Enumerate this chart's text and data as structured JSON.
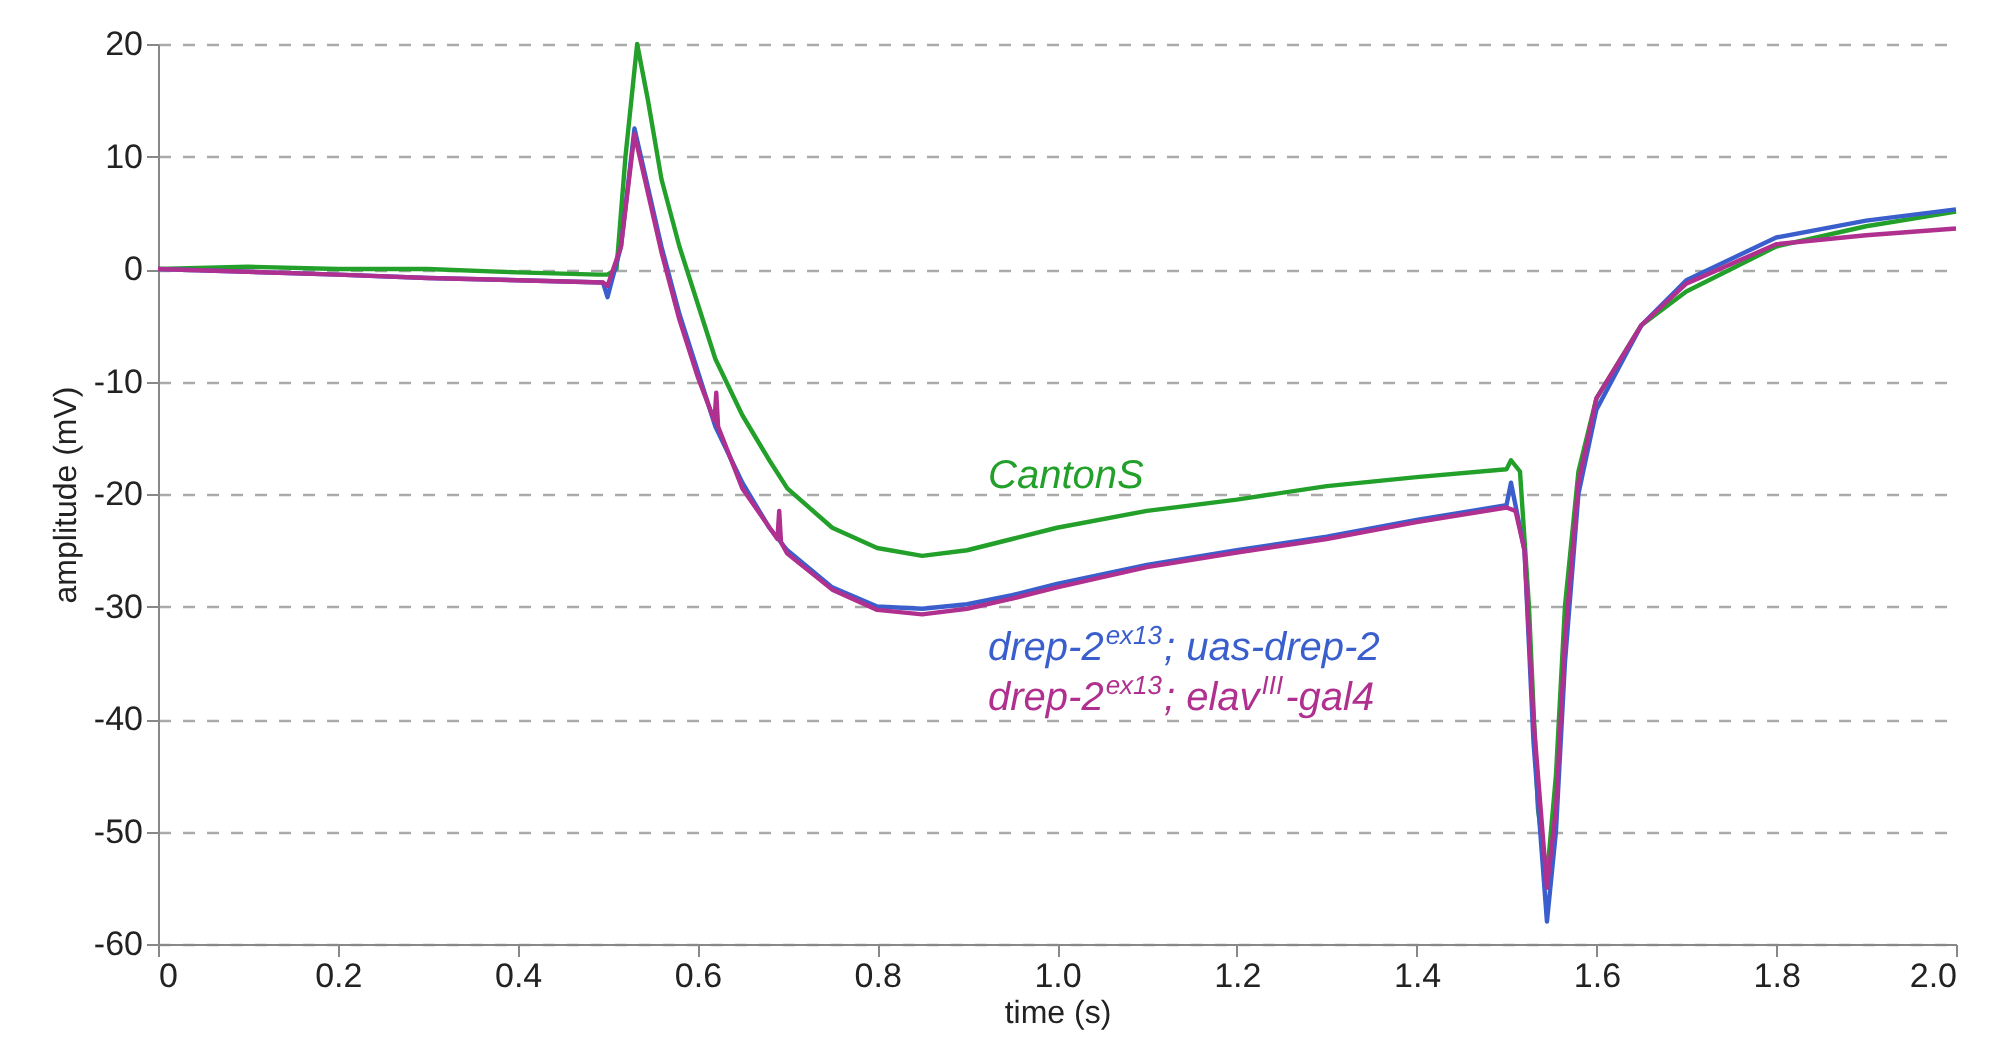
{
  "chart_data": {
    "type": "line",
    "xlabel": "time (s)",
    "ylabel": "amplitude (mV)",
    "xlim": [
      0,
      2.0
    ],
    "ylim": [
      -60,
      20
    ],
    "xticks": [
      0,
      0.2,
      0.4,
      0.6,
      0.8,
      {
        "value": 1,
        "label": "1.0"
      },
      1.2,
      1.4,
      1.6,
      1.8,
      {
        "value": 2,
        "label": "2.0"
      }
    ],
    "yticks": [
      -60,
      -50,
      -40,
      -30,
      -20,
      -10,
      0,
      10,
      20
    ],
    "grid": "y",
    "line_style": "solid",
    "series": [
      {
        "name": "CantonS",
        "color": "#22a02a",
        "x": [
          0,
          0.1,
          0.2,
          0.3,
          0.4,
          0.49,
          0.5,
          0.51,
          0.52,
          0.533,
          0.545,
          0.56,
          0.58,
          0.6,
          0.62,
          0.65,
          0.68,
          0.7,
          0.75,
          0.8,
          0.85,
          0.9,
          0.95,
          1.0,
          1.1,
          1.2,
          1.3,
          1.4,
          1.5,
          1.505,
          1.515,
          1.525,
          1.535,
          1.545,
          1.555,
          1.565,
          1.58,
          1.6,
          1.65,
          1.7,
          1.8,
          1.9,
          2.0
        ],
        "values": [
          0,
          0.2,
          0,
          0,
          -0.3,
          -0.5,
          -0.5,
          0,
          10,
          20,
          15,
          8,
          2,
          -3,
          -8,
          -13,
          -17,
          -19.5,
          -23,
          -24.8,
          -25.5,
          -25,
          -24,
          -23,
          -21.5,
          -20.5,
          -19.3,
          -18.5,
          -17.8,
          -17,
          -18,
          -30,
          -48,
          -54,
          -45,
          -30,
          -18,
          -11.5,
          -5,
          -2,
          2,
          3.8,
          5.1
        ]
      },
      {
        "name": "drep-2$^{ex13}$; uas-drep-2",
        "color": "#3a5fcd",
        "x": [
          0,
          0.2,
          0.3,
          0.4,
          0.495,
          0.5,
          0.505,
          0.515,
          0.53,
          0.54,
          0.56,
          0.58,
          0.6,
          0.62,
          0.65,
          0.68,
          0.7,
          0.75,
          0.8,
          0.85,
          0.9,
          0.95,
          1.0,
          1.1,
          1.2,
          1.3,
          1.4,
          1.5,
          1.505,
          1.51,
          1.52,
          1.53,
          1.545,
          1.555,
          1.565,
          1.58,
          1.6,
          1.65,
          1.7,
          1.8,
          1.9,
          2.0
        ],
        "values": [
          0,
          -0.5,
          -0.8,
          -1,
          -1.2,
          -2.5,
          -1,
          2,
          12.5,
          9,
          2,
          -4,
          -9,
          -14,
          -19,
          -23,
          -25,
          -28.3,
          -30,
          -30.2,
          -29.8,
          -29,
          -28,
          -26.3,
          -25,
          -23.8,
          -22.3,
          -21,
          -19,
          -21,
          -25,
          -42,
          -58,
          -50,
          -35,
          -20,
          -12.5,
          -5,
          -1,
          2.8,
          4.3,
          5.3
        ]
      },
      {
        "name": "drep-2$^{ex13}$; elav$^{III}$-gal4",
        "color": "#b0308f",
        "x": [
          0,
          0.2,
          0.3,
          0.4,
          0.495,
          0.5,
          0.515,
          0.53,
          0.54,
          0.56,
          0.58,
          0.6,
          0.619,
          0.621,
          0.623,
          0.65,
          0.689,
          0.691,
          0.693,
          0.7,
          0.75,
          0.8,
          0.85,
          0.9,
          0.95,
          1.0,
          1.1,
          1.2,
          1.3,
          1.4,
          1.5,
          1.51,
          1.52,
          1.53,
          1.545,
          1.555,
          1.565,
          1.58,
          1.6,
          1.65,
          1.7,
          1.8,
          1.9,
          2.0
        ],
        "values": [
          0,
          -0.5,
          -0.8,
          -1,
          -1.2,
          -1.5,
          2,
          12,
          8.5,
          1.5,
          -4.5,
          -9.5,
          -13.5,
          -11,
          -14,
          -19.5,
          -24,
          -21.5,
          -24.3,
          -25.3,
          -28.5,
          -30.3,
          -30.7,
          -30.2,
          -29.3,
          -28.3,
          -26.5,
          -25.2,
          -24,
          -22.5,
          -21.2,
          -21.5,
          -25,
          -40,
          -55,
          -48,
          -33,
          -19,
          -11.5,
          -5,
          -1.3,
          2.2,
          3,
          3.6
        ]
      }
    ]
  }
}
